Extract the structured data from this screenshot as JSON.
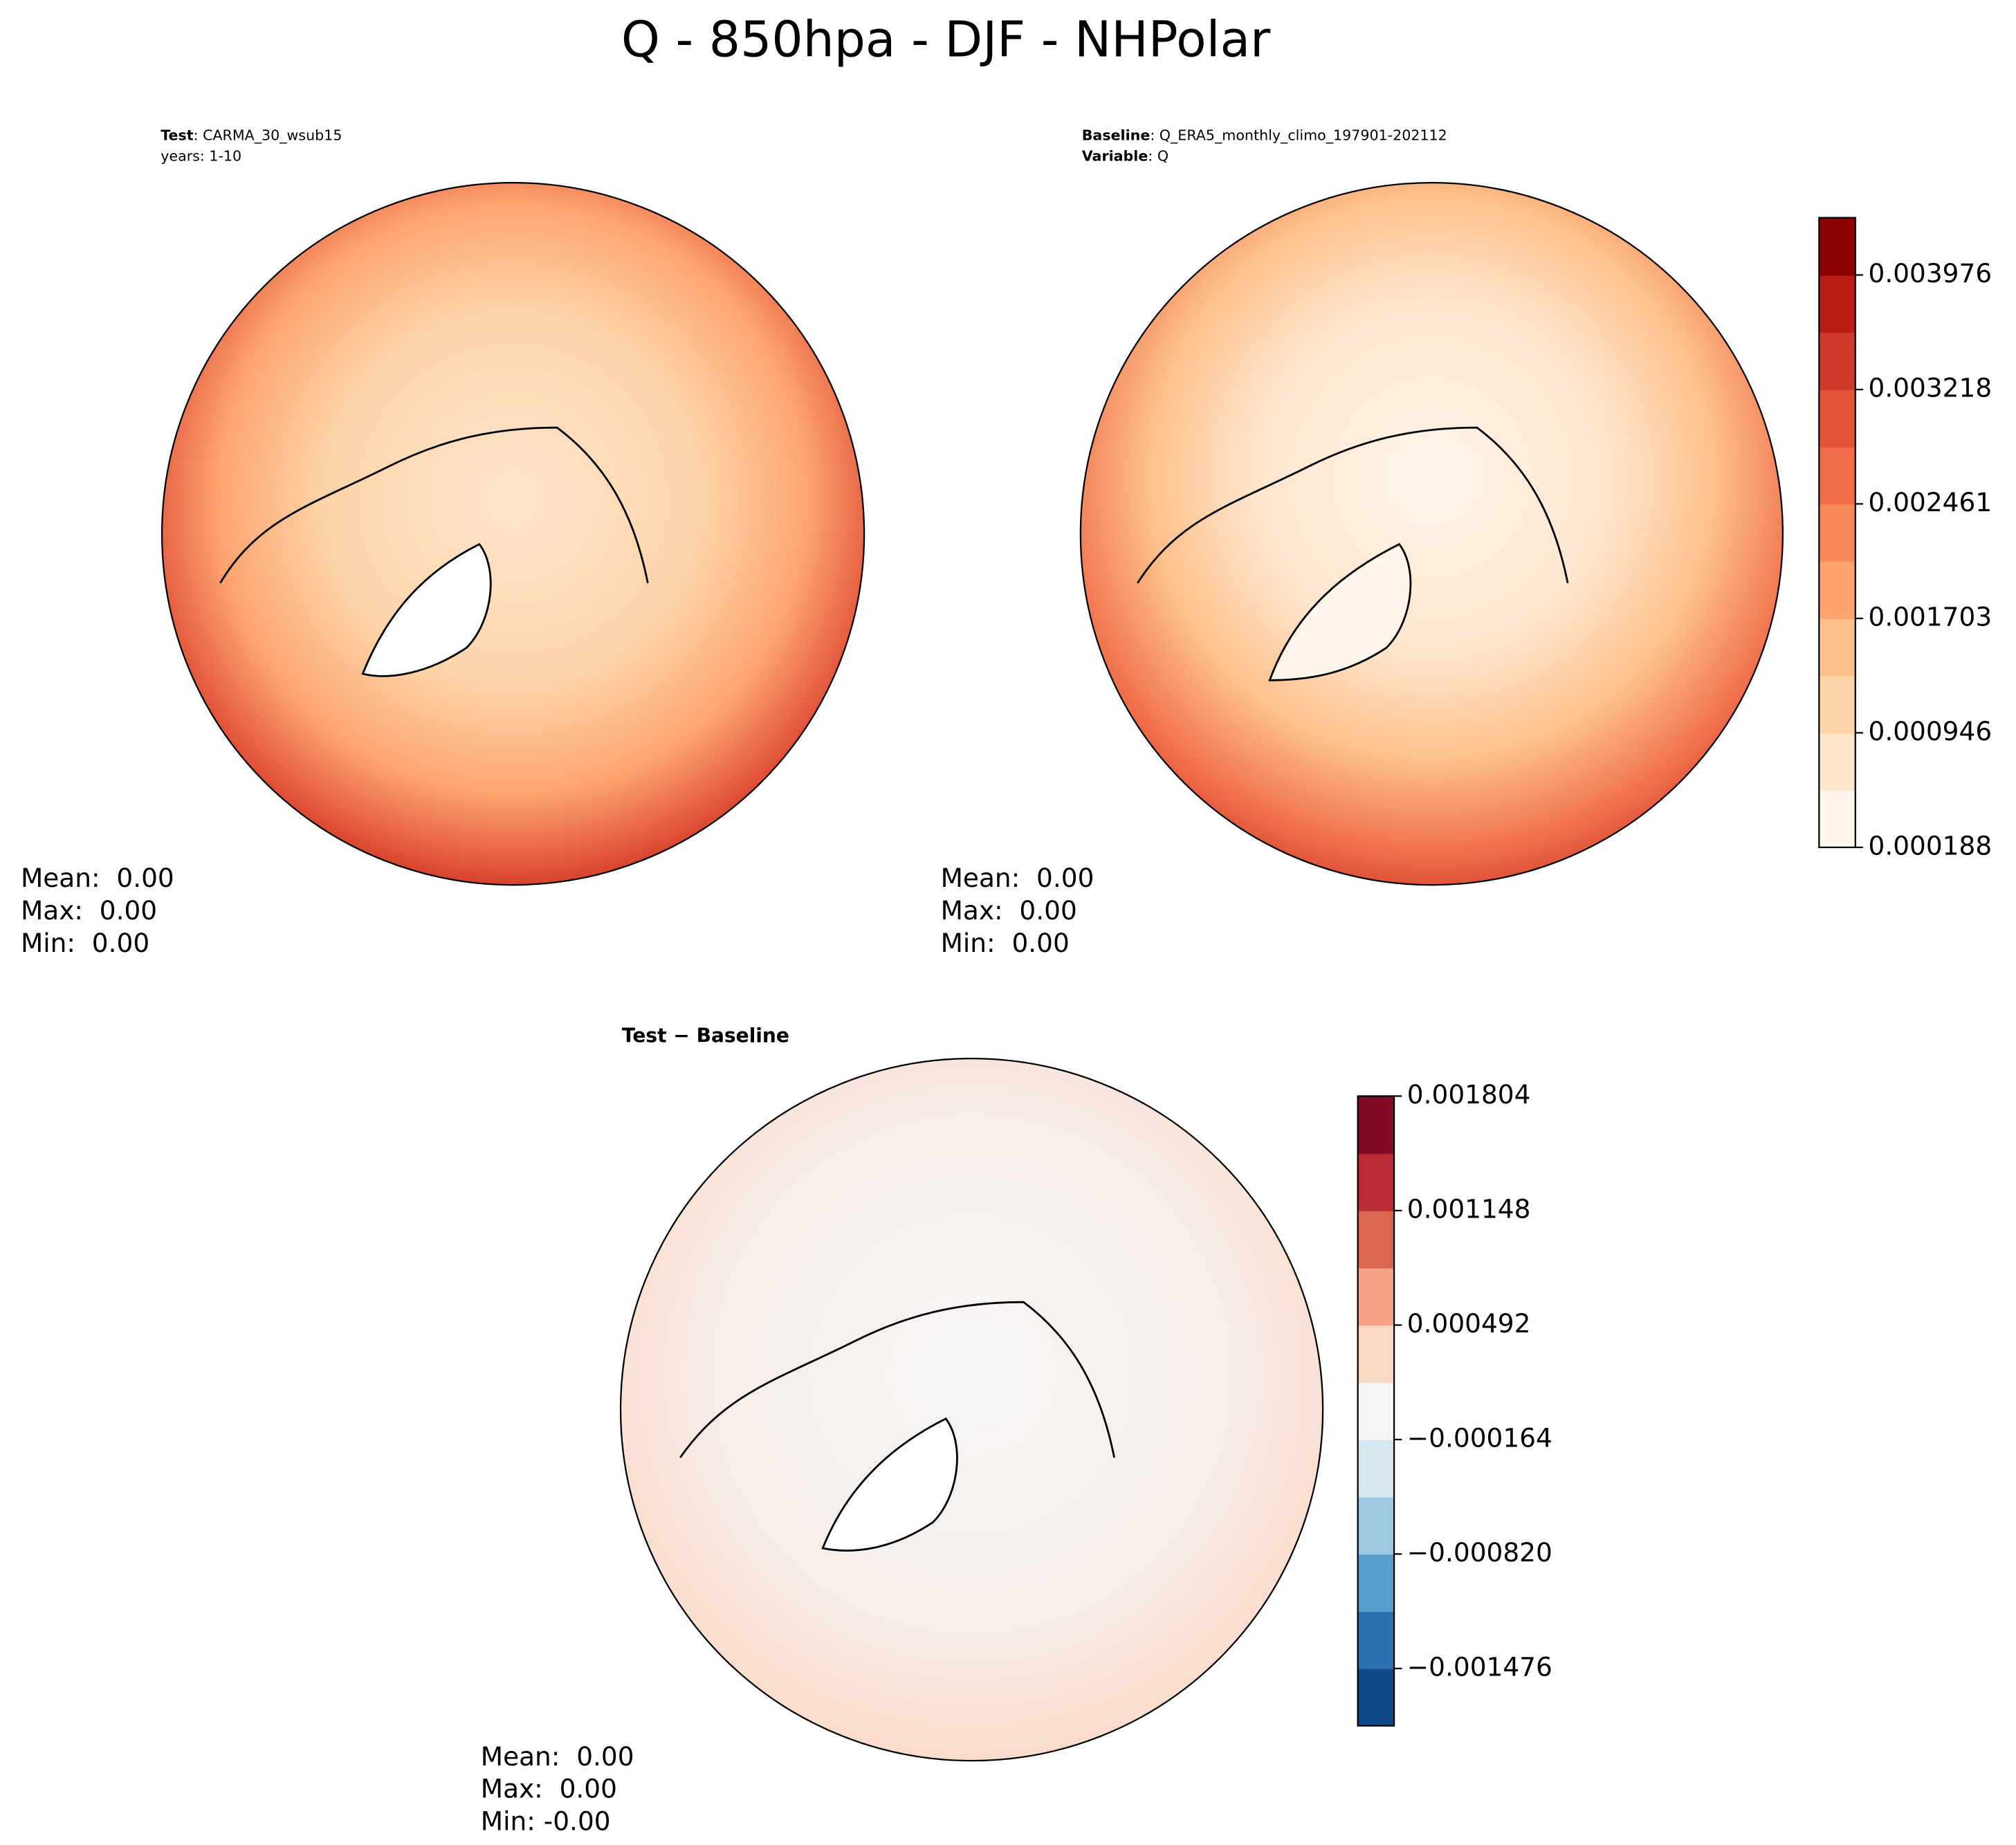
{
  "title": "Q - 850hpa - DJF - NHPolar",
  "panels": [
    {
      "info": [
        {
          "key": "Test",
          "text": ": CARMA_30_wsub15"
        }
      ],
      "lines": [
        "years: 1-10"
      ],
      "stats": [
        "Mean:  0.00",
        "Max:  0.00",
        "Min:  0.00"
      ]
    },
    {
      "info": [
        {
          "key": "Baseline",
          "text": ": Q_ERA5_monthly_climo_197901-202112"
        },
        {
          "key": "Variable",
          "text": ": Q"
        }
      ],
      "stats": [
        "Mean:  0.00",
        "Max:  0.00",
        "Min:  0.00"
      ]
    },
    {
      "heading": "Test − Baseline",
      "stats": [
        "Mean:  0.00",
        "Max:  0.00",
        "Min: -0.00"
      ]
    }
  ],
  "colorbars": [
    {
      "lim": [
        0.000188,
        0.004355
      ],
      "colors": [
        "#fff5eb",
        "#fee6ce",
        "#fdd3a8",
        "#fdc08a",
        "#fda46f",
        "#f8895a",
        "#f06d49",
        "#e2533a",
        "#ce3a2c",
        "#b91c14",
        "#8b0000"
      ],
      "ticks": [
        0.000188,
        0.000946,
        0.001703,
        0.002461,
        0.003218,
        0.003976
      ]
    },
    {
      "lim": [
        -0.001804,
        0.001804
      ],
      "colors": [
        "#0f4a87",
        "#2b71b0",
        "#549fcb",
        "#9cc9e1",
        "#d5e6f1",
        "#f5f5f5",
        "#fbd7c4",
        "#f5a384",
        "#d9664f",
        "#bb2b33",
        "#800b24"
      ],
      "ticks": [
        {
          "value": -0.001476,
          "label": "−0.001476"
        },
        {
          "value": -0.00082,
          "label": "−0.000820"
        },
        {
          "value": -0.000164,
          "label": "−0.000164"
        },
        0.000492,
        0.001148,
        0.001804
      ]
    }
  ]
}
